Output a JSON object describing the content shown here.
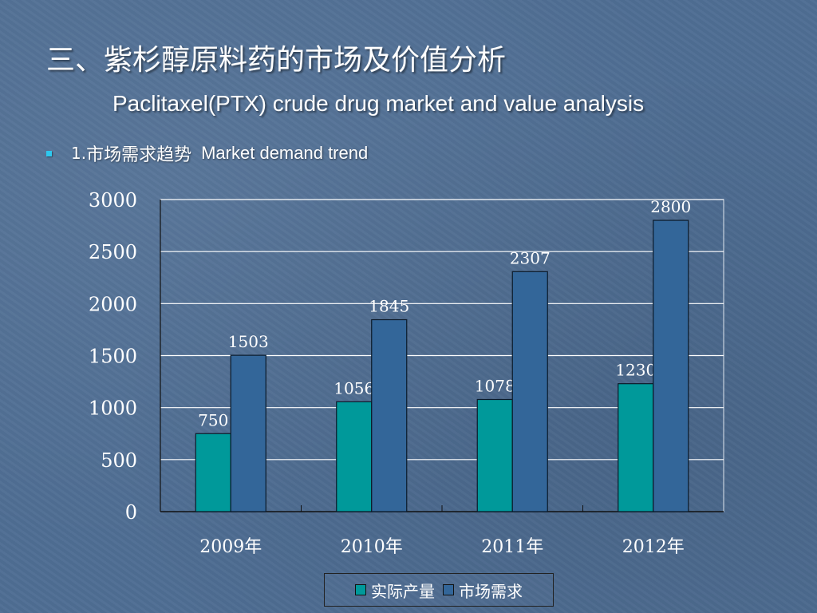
{
  "slide": {
    "title_cn": "三、紫杉醇原料药的市场及价值分析",
    "title_en": "Paclitaxel(PTX) crude drug market and value analysis",
    "bullet": {
      "number": "1.",
      "text_cn": "市场需求趋势",
      "text_en": "Market demand trend"
    }
  },
  "colors": {
    "bullet": "#2ec8ef",
    "series_production": "#00999a",
    "series_demand": "#336699",
    "grid": "#ffffff",
    "axis": "#111111"
  },
  "chart_data": {
    "type": "bar",
    "categories": [
      "2009年",
      "2010年",
      "2011年",
      "2012年"
    ],
    "series": [
      {
        "name": "实际产量",
        "values": [
          750,
          1056,
          1078,
          1230
        ],
        "color": "#00999a"
      },
      {
        "name": "市场需求",
        "values": [
          1503,
          1845,
          2307,
          2800
        ],
        "color": "#336699"
      }
    ],
    "y_ticks": [
      "0",
      "500",
      "1000",
      "1500",
      "2000",
      "2500",
      "3000"
    ],
    "ylim": [
      0,
      3000
    ],
    "grid": true,
    "legend": "bottom"
  }
}
